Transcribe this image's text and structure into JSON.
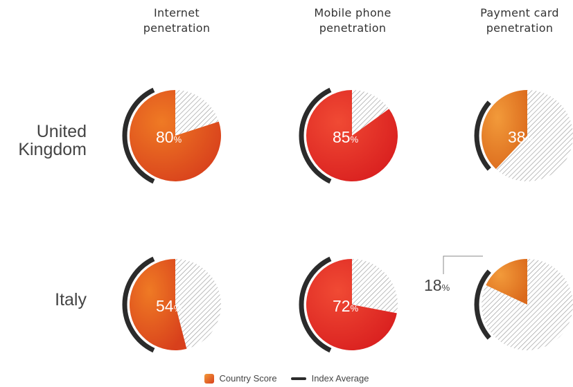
{
  "chart_data": {
    "type": "pie",
    "columns": [
      "Internet\npenetration",
      "Mobile phone\npenetration",
      "Payment card\npenetration"
    ],
    "rows": [
      "United\nKingdom",
      "Italy"
    ],
    "values": [
      [
        80,
        85,
        38
      ],
      [
        54,
        72,
        18
      ]
    ],
    "labels": [
      [
        "80",
        "85",
        "38"
      ],
      [
        "54",
        "72",
        "18"
      ]
    ],
    "unit": "%",
    "index_average_pct": [
      [
        36,
        36,
        23
      ],
      [
        36,
        36,
        23
      ]
    ],
    "legend": {
      "country": "Country Score",
      "index": "Index Average"
    },
    "colors": {
      "country": [
        "#ef7a24",
        "#d8401c"
      ],
      "mobile": [
        "#f04a34",
        "#d91f1f"
      ],
      "card": [
        "#f29a3a",
        "#db6a1c"
      ],
      "index": "#2b2b2b",
      "hatch": "#999999"
    }
  }
}
